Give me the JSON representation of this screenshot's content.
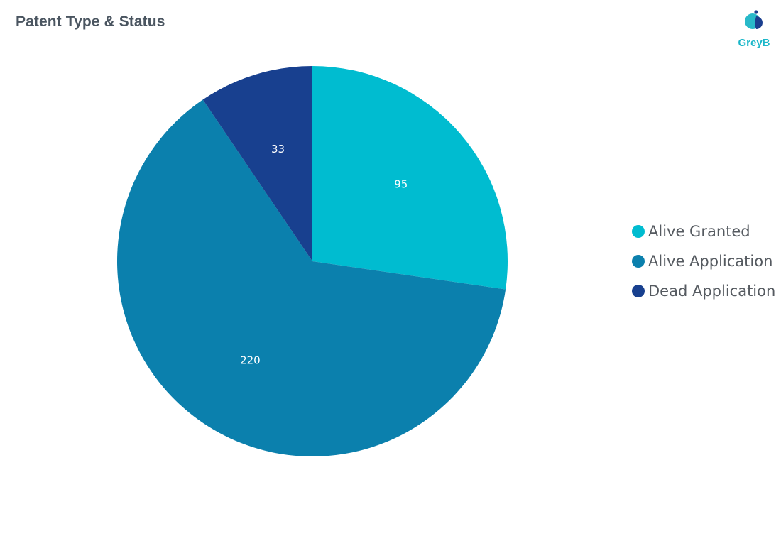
{
  "header": {
    "title": "Patent Type & Status"
  },
  "brand": {
    "name": "GreyB",
    "colors": {
      "teal": "#1bb7c9",
      "navy": "#1a3f8f"
    }
  },
  "chart_data": {
    "type": "pie",
    "title": "Patent Type & Status",
    "legend_position": "right",
    "start_angle_deg": 0,
    "direction": "clockwise",
    "slices": [
      {
        "label": "Alive Granted",
        "value": 95,
        "color": "#00bcd0"
      },
      {
        "label": "Alive Application",
        "value": 220,
        "color": "#0b80ad"
      },
      {
        "label": "Dead Application",
        "value": 33,
        "color": "#18408f"
      }
    ]
  }
}
